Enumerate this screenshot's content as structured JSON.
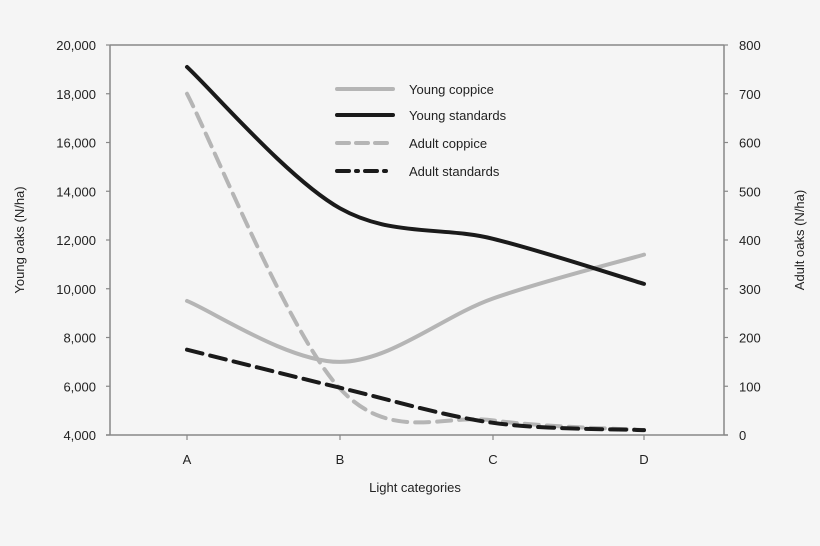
{
  "chart_data": {
    "type": "line",
    "title": "",
    "categories": [
      "A",
      "B",
      "C",
      "D"
    ],
    "xlabel": "Light categories",
    "ylabel_left": "Young oaks (N/ha)",
    "ylabel_right": "Adult oaks (N/ha)",
    "ylim_left": [
      4000,
      20000
    ],
    "ylim_right": [
      0,
      800
    ],
    "yticks_left": [
      "4,000",
      "6,000",
      "8,000",
      "10,000",
      "12,000",
      "14,000",
      "16,000",
      "18,000",
      "20,000"
    ],
    "yticks_right": [
      "0",
      "100",
      "200",
      "300",
      "400",
      "500",
      "600",
      "700",
      "800"
    ],
    "grid": false,
    "legend_position": "upper center",
    "series": [
      {
        "name": "Young coppice",
        "axis": "left",
        "style": "solid",
        "color": "#b5b5b5",
        "values": [
          9500,
          7000,
          9600,
          11400
        ]
      },
      {
        "name": "Young standards",
        "axis": "left",
        "style": "solid",
        "color": "#1a1a1a",
        "values": [
          19100,
          13300,
          12050,
          10200
        ]
      },
      {
        "name": "Adult coppice",
        "axis": "right",
        "style": "dashed",
        "color": "#b5b5b5",
        "values": [
          700,
          95,
          30,
          10
        ]
      },
      {
        "name": "Adult standards",
        "axis": "right",
        "style": "dash-dot",
        "color": "#1a1a1a",
        "values": [
          175,
          97,
          25,
          10
        ]
      }
    ]
  },
  "legend": {
    "items": [
      {
        "label": "Young coppice"
      },
      {
        "label": "Young standards"
      },
      {
        "label": "Adult coppice"
      },
      {
        "label": "Adult standards"
      }
    ]
  },
  "axes": {
    "xlabel": "Light categories",
    "ylabel_left": "Young oaks (N/ha)",
    "ylabel_right": "Adult oaks (N/ha)"
  }
}
